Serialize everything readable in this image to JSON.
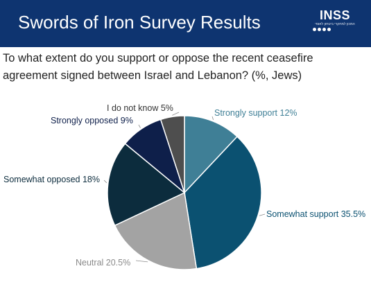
{
  "header": {
    "title": "Swords of Iron Survey Results",
    "logo_text": "INSS",
    "logo_subtitle": "המכון למחקרי ביטחון לאומי"
  },
  "question": "To what extent do you support or oppose the recent ceasefire agreement signed between Israel and Lebanon? (%, Jews)",
  "colors": {
    "header_bg": "#0e3470",
    "strongly_support": "#3f7f96",
    "somewhat_support": "#0b5171",
    "neutral": "#a3a3a3",
    "somewhat_opposed": "#0c2c3d",
    "strongly_opposed": "#0e1f4a",
    "dont_know": "#4e4e4e"
  },
  "chart_data": {
    "type": "pie",
    "title": "",
    "slices": [
      {
        "label": "Strongly support 12%",
        "value": 12,
        "color": "#3f7f96",
        "label_color": "#3f7f96"
      },
      {
        "label": "Somewhat support 35.5%",
        "value": 35.5,
        "color": "#0b5171",
        "label_color": "#0b5171"
      },
      {
        "label": "Neutral 20.5%",
        "value": 20.5,
        "color": "#a3a3a3",
        "label_color": "#8a8a8a"
      },
      {
        "label": "Somewhat opposed 18%",
        "value": 18,
        "color": "#0c2c3d",
        "label_color": "#0c2c3d"
      },
      {
        "label": "Strongly opposed 9%",
        "value": 9,
        "color": "#0e1f4a",
        "label_color": "#0e1f4a"
      },
      {
        "label": "I do not know 5%",
        "value": 5,
        "color": "#4e4e4e",
        "label_color": "#333333"
      }
    ]
  }
}
